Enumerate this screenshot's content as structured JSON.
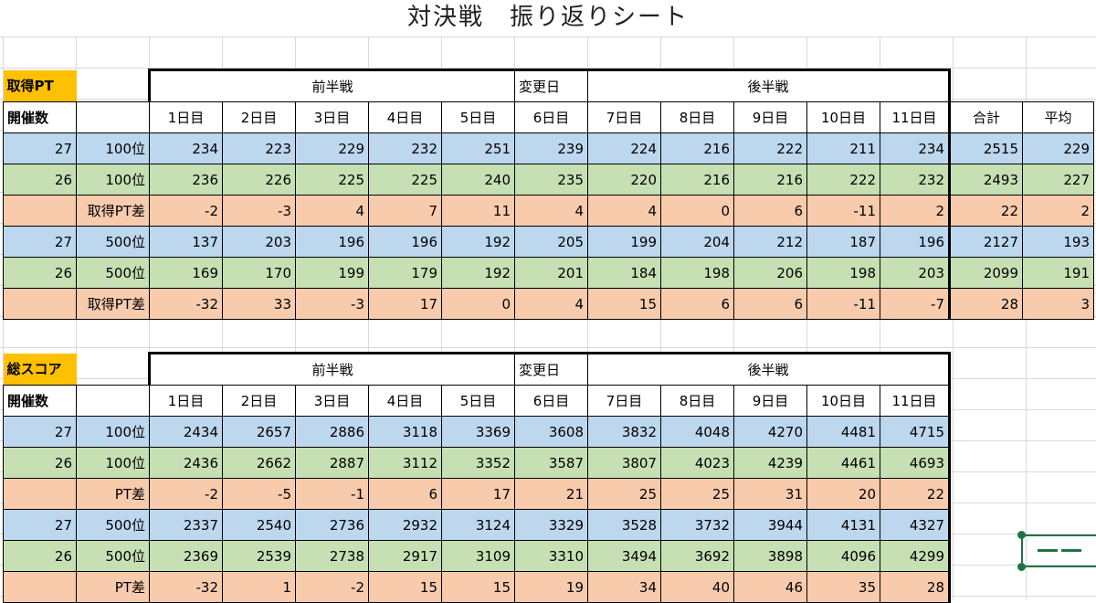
{
  "title": "対決戦　振り返りシート",
  "days": [
    "1日目",
    "2日目",
    "3日目",
    "4日目",
    "5日目",
    "6日目",
    "7日目",
    "8日目",
    "9日目",
    "10日目",
    "11日目"
  ],
  "sections": {
    "first_half": "前半戦",
    "change_day": "変更日",
    "second_half": "後半戦"
  },
  "table1": {
    "label": "取得PT",
    "count_header": "開催数",
    "total_header": "合計",
    "avg_header": "平均",
    "rows": [
      {
        "count": "27",
        "rank": "100位",
        "values": [
          "234",
          "223",
          "229",
          "232",
          "251",
          "239",
          "224",
          "216",
          "222",
          "211",
          "234"
        ],
        "total": "2515",
        "avg": "229"
      },
      {
        "count": "26",
        "rank": "100位",
        "values": [
          "236",
          "226",
          "225",
          "225",
          "240",
          "235",
          "220",
          "216",
          "216",
          "222",
          "232"
        ],
        "total": "2493",
        "avg": "227"
      },
      {
        "count": "",
        "rank": "取得PT差",
        "values": [
          "-2",
          "-3",
          "4",
          "7",
          "11",
          "4",
          "4",
          "0",
          "6",
          "-11",
          "2"
        ],
        "total": "22",
        "avg": "2"
      },
      {
        "count": "27",
        "rank": "500位",
        "values": [
          "137",
          "203",
          "196",
          "196",
          "192",
          "205",
          "199",
          "204",
          "212",
          "187",
          "196"
        ],
        "total": "2127",
        "avg": "193"
      },
      {
        "count": "26",
        "rank": "500位",
        "values": [
          "169",
          "170",
          "199",
          "179",
          "192",
          "201",
          "184",
          "198",
          "206",
          "198",
          "203"
        ],
        "total": "2099",
        "avg": "191"
      },
      {
        "count": "",
        "rank": "取得PT差",
        "values": [
          "-32",
          "33",
          "-3",
          "17",
          "0",
          "4",
          "15",
          "6",
          "6",
          "-11",
          "-7"
        ],
        "total": "28",
        "avg": "3"
      }
    ]
  },
  "table2": {
    "label": "総スコア",
    "count_header": "開催数",
    "rows": [
      {
        "count": "27",
        "rank": "100位",
        "values": [
          "2434",
          "2657",
          "2886",
          "3118",
          "3369",
          "3608",
          "3832",
          "4048",
          "4270",
          "4481",
          "4715"
        ]
      },
      {
        "count": "26",
        "rank": "100位",
        "values": [
          "2436",
          "2662",
          "2887",
          "3112",
          "3352",
          "3587",
          "3807",
          "4023",
          "4239",
          "4461",
          "4693"
        ]
      },
      {
        "count": "",
        "rank": "PT差",
        "values": [
          "-2",
          "-5",
          "-1",
          "6",
          "17",
          "21",
          "25",
          "25",
          "31",
          "20",
          "22"
        ]
      },
      {
        "count": "27",
        "rank": "500位",
        "values": [
          "2337",
          "2540",
          "2736",
          "2932",
          "3124",
          "3329",
          "3528",
          "3732",
          "3944",
          "4131",
          "4327"
        ]
      },
      {
        "count": "26",
        "rank": "500位",
        "values": [
          "2369",
          "2539",
          "2738",
          "2917",
          "3109",
          "3310",
          "3494",
          "3692",
          "3898",
          "4096",
          "4299"
        ]
      },
      {
        "count": "",
        "rank": "PT差",
        "values": [
          "-32",
          "1",
          "-2",
          "15",
          "15",
          "19",
          "34",
          "40",
          "46",
          "35",
          "28"
        ]
      }
    ]
  },
  "colors": {
    "label": "#ffc000",
    "row_27": "#bdd7ee",
    "row_26": "#c6e0b4",
    "row_diff": "#f8cbad",
    "selection": "#217346"
  }
}
